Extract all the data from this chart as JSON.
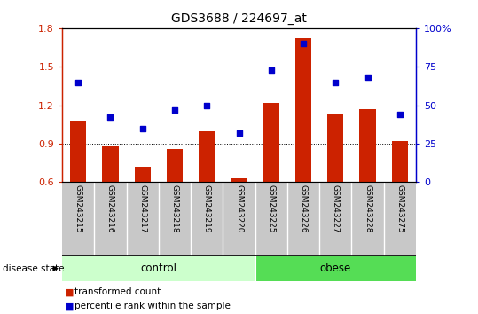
{
  "title": "GDS3688 / 224697_at",
  "samples": [
    "GSM243215",
    "GSM243216",
    "GSM243217",
    "GSM243218",
    "GSM243219",
    "GSM243220",
    "GSM243225",
    "GSM243226",
    "GSM243227",
    "GSM243228",
    "GSM243275"
  ],
  "groups": [
    "control",
    "control",
    "control",
    "control",
    "control",
    "control",
    "obese",
    "obese",
    "obese",
    "obese",
    "obese"
  ],
  "transformed_count": [
    1.08,
    0.88,
    0.72,
    0.86,
    1.0,
    0.63,
    1.22,
    1.72,
    1.13,
    1.17,
    0.92
  ],
  "percentile_rank_pct": [
    65,
    42,
    35,
    47,
    50,
    32,
    73,
    90,
    65,
    68,
    44
  ],
  "ylim_left": [
    0.6,
    1.8
  ],
  "ylim_right": [
    0,
    100
  ],
  "yticks_left": [
    0.6,
    0.9,
    1.2,
    1.5,
    1.8
  ],
  "yticks_right": [
    0,
    25,
    50,
    75,
    100
  ],
  "bar_color": "#cc2200",
  "dot_color": "#0000cc",
  "control_color": "#ccffcc",
  "obese_color": "#55dd55",
  "sample_bg_color": "#c8c8c8",
  "ylabel_left_color": "#cc2200",
  "ylabel_right_color": "#0000cc",
  "n_control": 6,
  "n_obese": 5
}
